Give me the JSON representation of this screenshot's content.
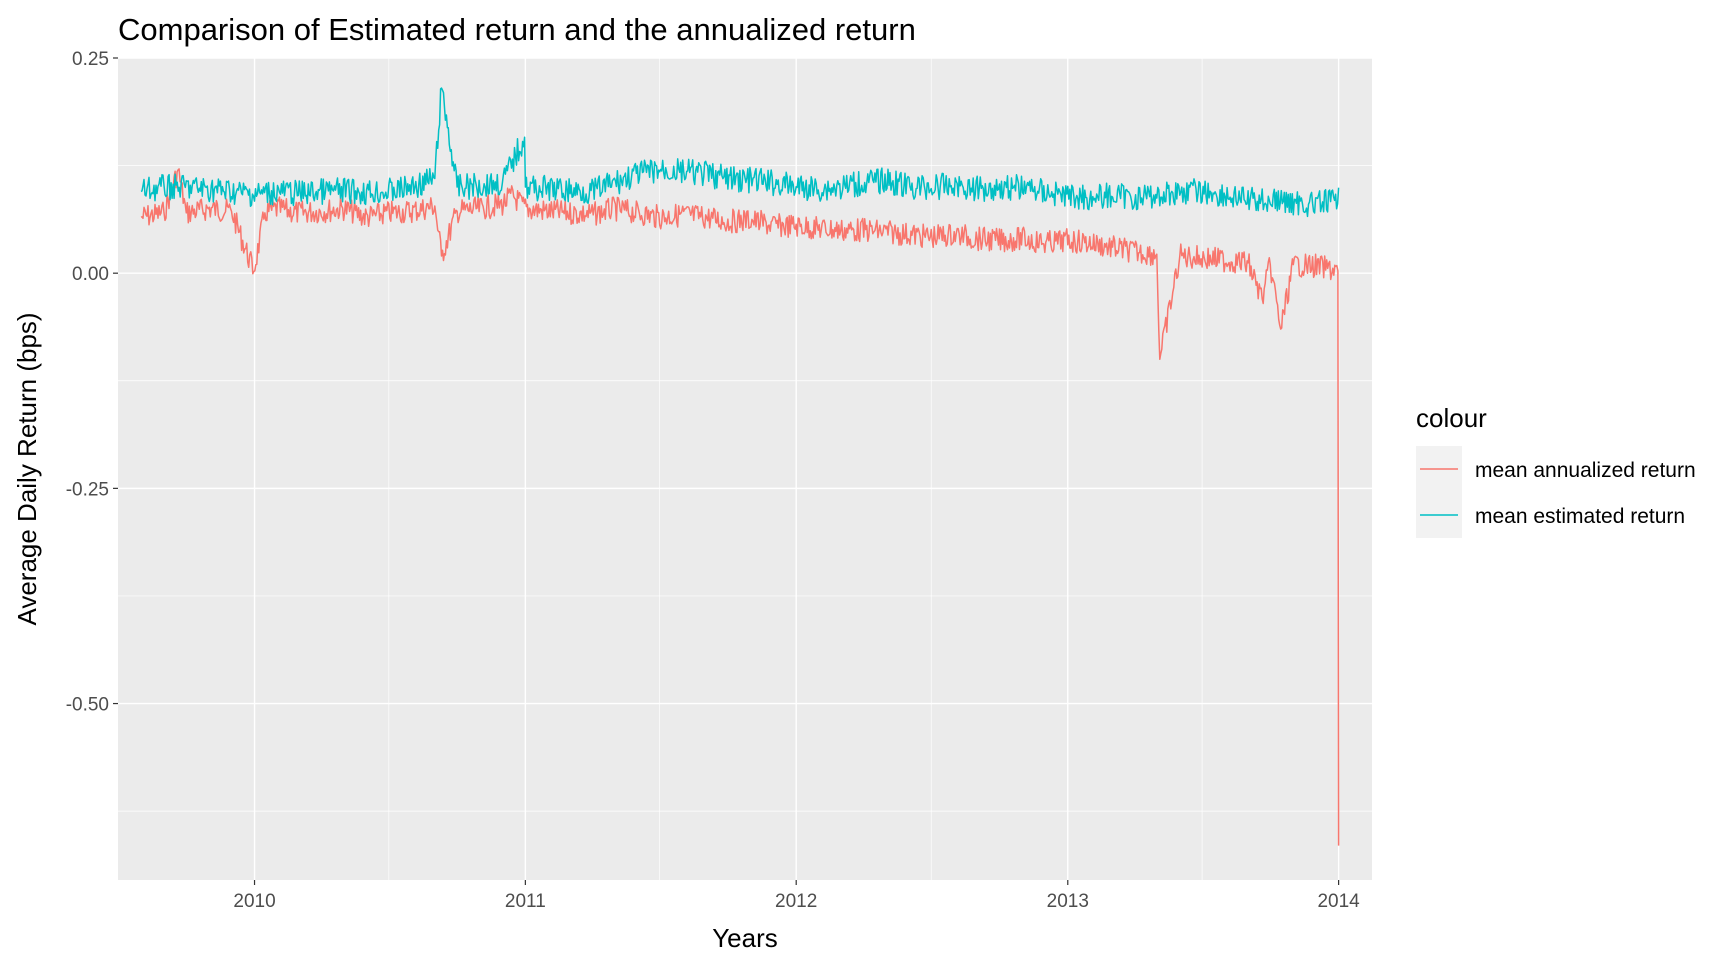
{
  "chart_data": {
    "type": "line",
    "title": "Comparison of Estimated return and the annualized return",
    "xlabel": "Years",
    "ylabel": "Average Daily Return (bps)",
    "x_ticks": [
      "2010",
      "2011",
      "2012",
      "2013",
      "2014"
    ],
    "y_ticks": [
      "0.25",
      "0.00",
      "-0.25",
      "-0.50"
    ],
    "xlim": [
      "2009-07-01",
      "2014-02-15"
    ],
    "ylim": [
      -0.705,
      0.25
    ],
    "grid": true,
    "legend": {
      "title": "colour",
      "placement": "right"
    },
    "series": [
      {
        "name": "mean annualized return",
        "color": "#F8766D",
        "x": [
          "2009-08-01",
          "2009-09-01",
          "2009-09-20",
          "2009-10-01",
          "2009-11-01",
          "2009-12-01",
          "2009-12-31",
          "2010-01-15",
          "2010-02-01",
          "2010-03-01",
          "2010-04-01",
          "2010-05-01",
          "2010-06-01",
          "2010-07-01",
          "2010-08-01",
          "2010-09-01",
          "2010-09-10",
          "2010-10-01",
          "2010-11-01",
          "2010-12-01",
          "2010-12-15",
          "2011-01-01",
          "2011-02-01",
          "2011-03-01",
          "2011-04-01",
          "2011-05-01",
          "2011-06-01",
          "2011-07-01",
          "2011-08-01",
          "2011-09-01",
          "2011-10-01",
          "2011-11-01",
          "2011-12-01",
          "2012-01-01",
          "2012-02-01",
          "2012-03-01",
          "2012-04-01",
          "2012-05-01",
          "2012-06-01",
          "2012-07-01",
          "2012-08-01",
          "2012-09-01",
          "2012-10-01",
          "2012-11-01",
          "2012-12-01",
          "2013-01-01",
          "2013-02-01",
          "2013-03-01",
          "2013-04-01",
          "2013-05-01",
          "2013-05-05",
          "2013-06-01",
          "2013-07-01",
          "2013-08-01",
          "2013-09-01",
          "2013-09-20",
          "2013-10-01",
          "2013-10-15",
          "2013-11-01",
          "2013-12-01",
          "2013-12-20",
          "2013-12-31",
          "2014-01-01"
        ],
        "values": [
          0.065,
          0.07,
          0.12,
          0.07,
          0.075,
          0.072,
          0.002,
          0.07,
          0.075,
          0.07,
          0.072,
          0.075,
          0.065,
          0.07,
          0.072,
          0.078,
          0.02,
          0.072,
          0.075,
          0.08,
          0.09,
          0.075,
          0.072,
          0.07,
          0.068,
          0.075,
          0.07,
          0.065,
          0.068,
          0.065,
          0.06,
          0.062,
          0.055,
          0.055,
          0.052,
          0.05,
          0.05,
          0.048,
          0.045,
          0.042,
          0.045,
          0.04,
          0.038,
          0.04,
          0.035,
          0.038,
          0.035,
          0.03,
          0.025,
          0.022,
          -0.1,
          0.02,
          0.018,
          0.015,
          0.012,
          -0.03,
          0.01,
          -0.065,
          0.01,
          0.008,
          0.005,
          0.003,
          -0.665
        ]
      },
      {
        "name": "mean estimated return",
        "color": "#00BFC4",
        "x": [
          "2009-08-01",
          "2009-09-01",
          "2009-10-01",
          "2009-11-01",
          "2009-12-01",
          "2010-01-01",
          "2010-02-01",
          "2010-03-01",
          "2010-04-01",
          "2010-05-01",
          "2010-06-01",
          "2010-07-01",
          "2010-08-01",
          "2010-09-01",
          "2010-09-10",
          "2010-10-01",
          "2010-11-01",
          "2010-12-01",
          "2010-12-31",
          "2011-01-01",
          "2011-02-01",
          "2011-03-01",
          "2011-04-01",
          "2011-05-01",
          "2011-06-01",
          "2011-07-01",
          "2011-08-01",
          "2011-09-01",
          "2011-10-01",
          "2011-11-01",
          "2011-12-01",
          "2012-01-01",
          "2012-02-01",
          "2012-03-01",
          "2012-04-01",
          "2012-05-01",
          "2012-06-01",
          "2012-07-01",
          "2012-08-01",
          "2012-09-01",
          "2012-10-01",
          "2012-11-01",
          "2012-12-01",
          "2013-01-01",
          "2013-02-01",
          "2013-03-01",
          "2013-04-01",
          "2013-05-01",
          "2013-06-01",
          "2013-07-01",
          "2013-08-01",
          "2013-09-01",
          "2013-10-01",
          "2013-11-01",
          "2013-12-01",
          "2014-01-01"
        ],
        "values": [
          0.095,
          0.1,
          0.1,
          0.098,
          0.095,
          0.092,
          0.095,
          0.093,
          0.095,
          0.096,
          0.094,
          0.095,
          0.1,
          0.11,
          0.215,
          0.1,
          0.102,
          0.105,
          0.158,
          0.1,
          0.098,
          0.096,
          0.095,
          0.105,
          0.115,
          0.12,
          0.118,
          0.115,
          0.11,
          0.108,
          0.105,
          0.1,
          0.098,
          0.1,
          0.105,
          0.108,
          0.1,
          0.1,
          0.102,
          0.098,
          0.1,
          0.1,
          0.095,
          0.09,
          0.088,
          0.09,
          0.088,
          0.09,
          0.095,
          0.095,
          0.09,
          0.085,
          0.085,
          0.082,
          0.08,
          0.085
        ]
      }
    ]
  }
}
